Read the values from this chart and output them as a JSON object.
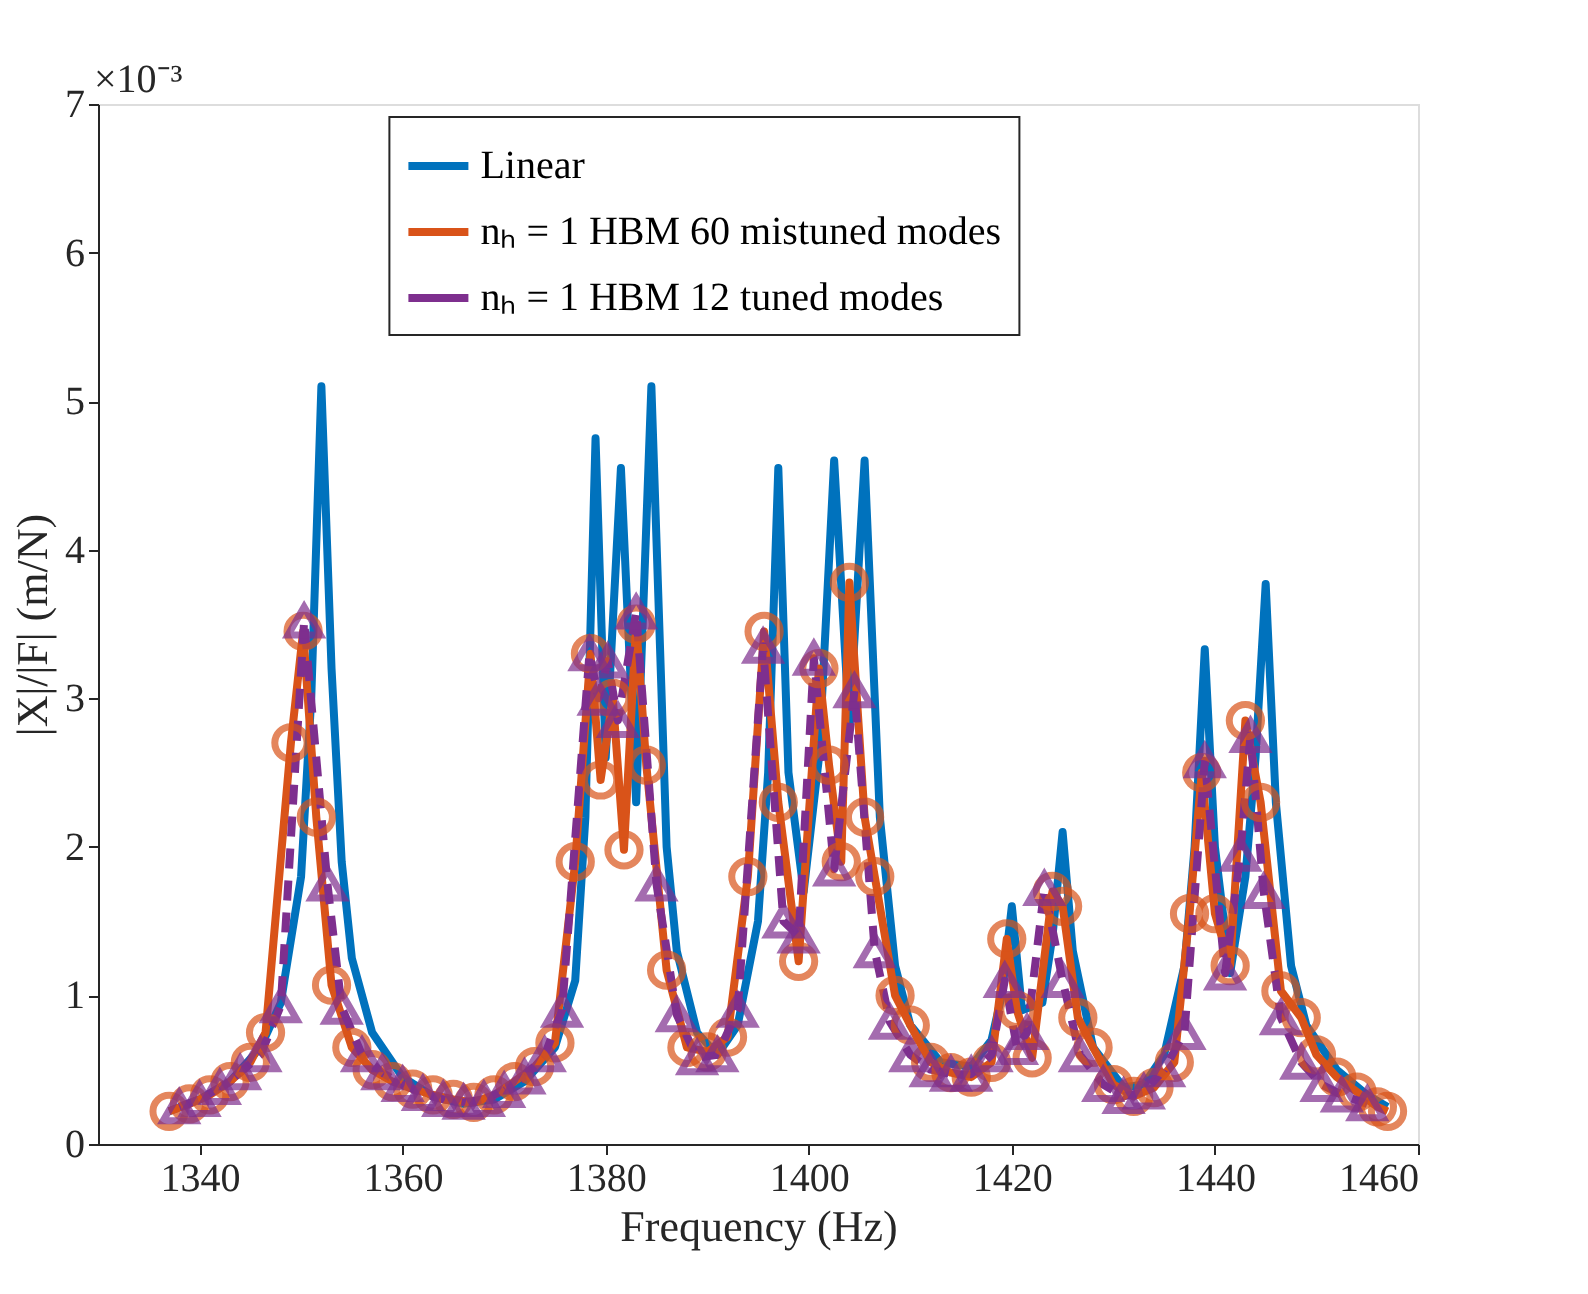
{
  "chart_data": {
    "type": "line",
    "xlabel": "Frequency (Hz)",
    "ylabel": "|X|/|F| (m/N)",
    "annotations": [
      "×10⁻³"
    ],
    "xlim": [
      1330,
      1460
    ],
    "xticks": [
      1340,
      1360,
      1380,
      1400,
      1420,
      1440,
      1460
    ],
    "ylim": [
      0,
      7
    ],
    "yticks": [
      0,
      1,
      2,
      3,
      4,
      5,
      6,
      7
    ],
    "grid": false,
    "legend": "top",
    "series": [
      {
        "name": "Linear",
        "color": "#0072bd",
        "marker": "none",
        "line_style": "solid",
        "x": [
          1337,
          1340,
          1343,
          1346,
          1348,
          1350,
          1351,
          1352,
          1353,
          1354,
          1355,
          1357,
          1360,
          1363,
          1366,
          1369,
          1372,
          1375,
          1377,
          1378,
          1379,
          1380,
          1381.5,
          1383,
          1384.5,
          1386,
          1387,
          1389,
          1391,
          1393,
          1395,
          1396,
          1397,
          1398,
          1399.5,
          1401,
          1402.5,
          1404,
          1405.5,
          1407,
          1408.5,
          1410,
          1413,
          1416,
          1418,
          1419,
          1420,
          1421,
          1423,
          1424,
          1425,
          1426,
          1428,
          1431,
          1433,
          1435,
          1437,
          1438,
          1439,
          1440,
          1441.5,
          1443,
          1444,
          1445,
          1446,
          1447.5,
          1449,
          1452,
          1455,
          1457
        ],
        "values": [
          0.22,
          0.3,
          0.42,
          0.65,
          0.95,
          1.8,
          3.0,
          5.1,
          3.2,
          1.9,
          1.25,
          0.75,
          0.45,
          0.32,
          0.27,
          0.3,
          0.42,
          0.65,
          1.1,
          2.2,
          4.75,
          2.6,
          4.55,
          2.3,
          5.1,
          2.0,
          1.3,
          0.75,
          0.6,
          0.8,
          1.5,
          2.5,
          4.55,
          2.5,
          1.7,
          2.6,
          4.6,
          2.8,
          4.6,
          2.2,
          1.2,
          0.8,
          0.55,
          0.52,
          0.7,
          1.0,
          1.6,
          0.9,
          0.95,
          1.4,
          2.1,
          1.3,
          0.65,
          0.38,
          0.4,
          0.6,
          1.2,
          2.0,
          3.33,
          2.0,
          1.15,
          1.8,
          2.6,
          3.77,
          2.3,
          1.2,
          0.8,
          0.5,
          0.33,
          0.25
        ]
      },
      {
        "name": "nₕ = 1 HBM 60 mistuned modes",
        "color": "#d95319",
        "marker": "circle",
        "line_style": "solid",
        "x": [
          1337,
          1339,
          1341,
          1343,
          1345,
          1346.5,
          1349,
          1350.2,
          1351.5,
          1353,
          1355,
          1357,
          1359,
          1361,
          1363,
          1365,
          1367,
          1369,
          1371,
          1373,
          1375,
          1377,
          1378.5,
          1379.5,
          1380.7,
          1381.8,
          1383,
          1384,
          1386,
          1388,
          1390,
          1392,
          1394,
          1395.6,
          1397,
          1399,
          1401,
          1402,
          1403.2,
          1404,
          1405.5,
          1406.5,
          1408.5,
          1410,
          1412,
          1414,
          1416,
          1418,
          1419.5,
          1420.5,
          1422,
          1424,
          1425,
          1426.5,
          1428,
          1430,
          1432,
          1434,
          1436,
          1437.5,
          1438.7,
          1440,
          1441.5,
          1443,
          1444.5,
          1446.5,
          1448.5,
          1450,
          1452,
          1454,
          1456,
          1457
        ],
        "values": [
          0.22,
          0.27,
          0.33,
          0.42,
          0.55,
          0.75,
          2.7,
          3.45,
          2.2,
          1.07,
          0.65,
          0.5,
          0.42,
          0.37,
          0.33,
          0.3,
          0.28,
          0.33,
          0.42,
          0.52,
          0.68,
          1.9,
          3.3,
          2.45,
          3.0,
          1.98,
          3.5,
          2.55,
          1.17,
          0.65,
          0.62,
          0.72,
          1.8,
          3.45,
          2.3,
          1.23,
          3.2,
          2.55,
          1.9,
          3.78,
          2.2,
          1.8,
          1.0,
          0.8,
          0.55,
          0.48,
          0.45,
          0.55,
          1.38,
          0.9,
          0.58,
          1.7,
          1.6,
          0.85,
          0.65,
          0.4,
          0.32,
          0.38,
          0.55,
          1.55,
          2.5,
          1.55,
          1.2,
          2.85,
          2.3,
          1.03,
          0.85,
          0.6,
          0.45,
          0.35,
          0.25,
          0.22
        ]
      },
      {
        "name": "nₕ = 1 HBM 12 tuned modes",
        "color": "#7e2f8e",
        "marker": "triangle",
        "line_style": "dashed",
        "x": [
          1338,
          1340,
          1342,
          1344,
          1346,
          1348,
          1350.3,
          1352.6,
          1354,
          1356,
          1358,
          1360,
          1362,
          1364,
          1366,
          1368,
          1370,
          1372,
          1374,
          1375.7,
          1378.4,
          1379.3,
          1380.2,
          1381.2,
          1383,
          1385,
          1387,
          1389,
          1391,
          1393,
          1395.5,
          1397.5,
          1399,
          1400.5,
          1402.5,
          1404.5,
          1406.5,
          1408,
          1410,
          1412,
          1414,
          1416,
          1418,
          1419.3,
          1420.5,
          1421.5,
          1423.2,
          1425,
          1426.7,
          1429,
          1431,
          1433,
          1435,
          1437,
          1439,
          1441,
          1442.5,
          1443.5,
          1444.8,
          1446.5,
          1448.5,
          1450.5,
          1452.5,
          1455
        ],
        "values": [
          0.25,
          0.3,
          0.38,
          0.48,
          0.6,
          0.93,
          3.52,
          1.75,
          0.92,
          0.6,
          0.48,
          0.4,
          0.34,
          0.3,
          0.28,
          0.3,
          0.36,
          0.45,
          0.6,
          0.9,
          3.3,
          3.0,
          3.25,
          2.85,
          3.58,
          1.75,
          0.87,
          0.58,
          0.6,
          0.9,
          3.35,
          1.5,
          1.4,
          3.27,
          1.85,
          3.05,
          1.3,
          0.82,
          0.6,
          0.5,
          0.47,
          0.47,
          0.6,
          1.1,
          0.65,
          0.75,
          1.72,
          1.1,
          0.6,
          0.4,
          0.32,
          0.35,
          0.5,
          0.75,
          2.58,
          1.15,
          1.95,
          2.75,
          1.7,
          0.85,
          0.55,
          0.4,
          0.33,
          0.27
        ]
      }
    ]
  }
}
